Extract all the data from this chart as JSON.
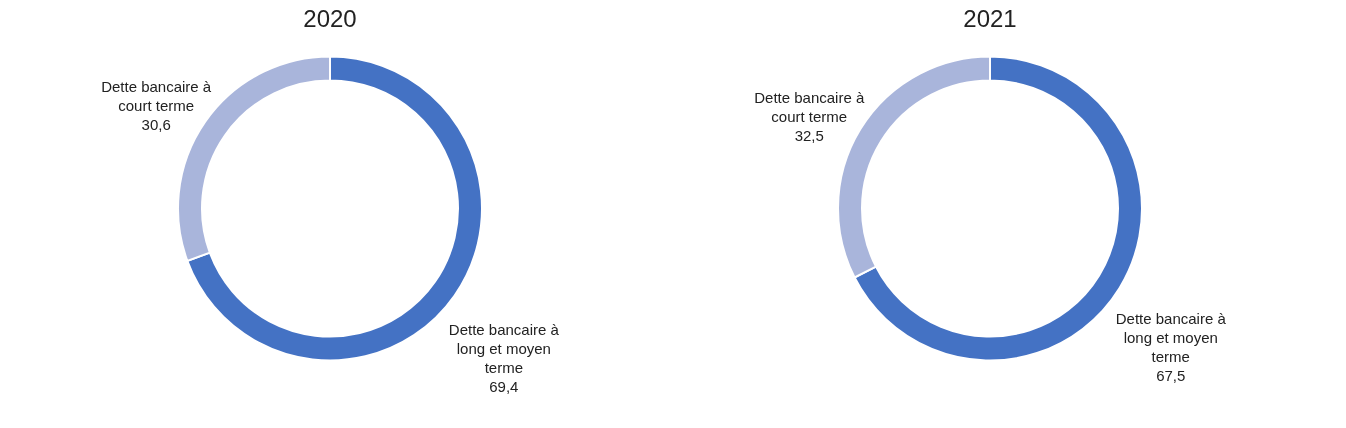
{
  "chart_data": [
    {
      "type": "donut",
      "title": "2020",
      "categories": [
        "Dette bancaire à long et moyen terme",
        "Dette bancaire à court terme"
      ],
      "values": [
        69.4,
        30.6
      ],
      "value_labels": [
        "69,4",
        "30,6"
      ],
      "colors": [
        "#4472c4",
        "#a9b5db"
      ],
      "legend": false
    },
    {
      "type": "donut",
      "title": "2021",
      "categories": [
        "Dette bancaire à long et moyen terme",
        "Dette bancaire à court terme"
      ],
      "values": [
        67.5,
        32.5
      ],
      "value_labels": [
        "67,5",
        "32,5"
      ],
      "colors": [
        "#4472c4",
        "#a9b5db"
      ],
      "legend": false
    }
  ]
}
